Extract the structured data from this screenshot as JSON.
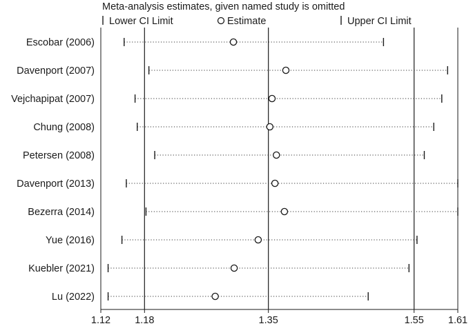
{
  "chart_data": {
    "type": "scatter",
    "title": "Meta-analysis estimates, given named study is omitted",
    "legend": {
      "position": "top",
      "entries": [
        {
          "symbol": "cap",
          "label": "Lower CI Limit"
        },
        {
          "symbol": "circle",
          "label": "Estimate"
        },
        {
          "symbol": "cap",
          "label": "Upper CI Limit"
        }
      ]
    },
    "x_axis": {
      "range": [
        1.12,
        1.61
      ],
      "ticks": [
        1.12,
        1.18,
        1.35,
        1.55,
        1.61
      ],
      "tick_labels": [
        "1.12",
        "1.18",
        "1.35",
        "1.55",
        "1.61"
      ]
    },
    "reference_lines": [
      1.18,
      1.35,
      1.55
    ],
    "grid": false,
    "studies": [
      {
        "label": "Escobar (2006)",
        "lower": 1.152,
        "estimate": 1.302,
        "upper": 1.508
      },
      {
        "label": "Davenport (2007)",
        "lower": 1.186,
        "estimate": 1.374,
        "upper": 1.596
      },
      {
        "label": "Vejchapipat (2007)",
        "lower": 1.167,
        "estimate": 1.355,
        "upper": 1.588
      },
      {
        "label": "Chung (2008)",
        "lower": 1.17,
        "estimate": 1.352,
        "upper": 1.577
      },
      {
        "label": "Petersen (2008)",
        "lower": 1.194,
        "estimate": 1.361,
        "upper": 1.564
      },
      {
        "label": "Davenport (2013)",
        "lower": 1.155,
        "estimate": 1.359,
        "upper": 1.61
      },
      {
        "label": "Bezerra (2014)",
        "lower": 1.182,
        "estimate": 1.372,
        "upper": 1.61
      },
      {
        "label": "Yue (2016)",
        "lower": 1.149,
        "estimate": 1.336,
        "upper": 1.554
      },
      {
        "label": "Kuebler (2021)",
        "lower": 1.13,
        "estimate": 1.303,
        "upper": 1.543
      },
      {
        "label": "Lu (2022)",
        "lower": 1.13,
        "estimate": 1.277,
        "upper": 1.487
      }
    ]
  }
}
